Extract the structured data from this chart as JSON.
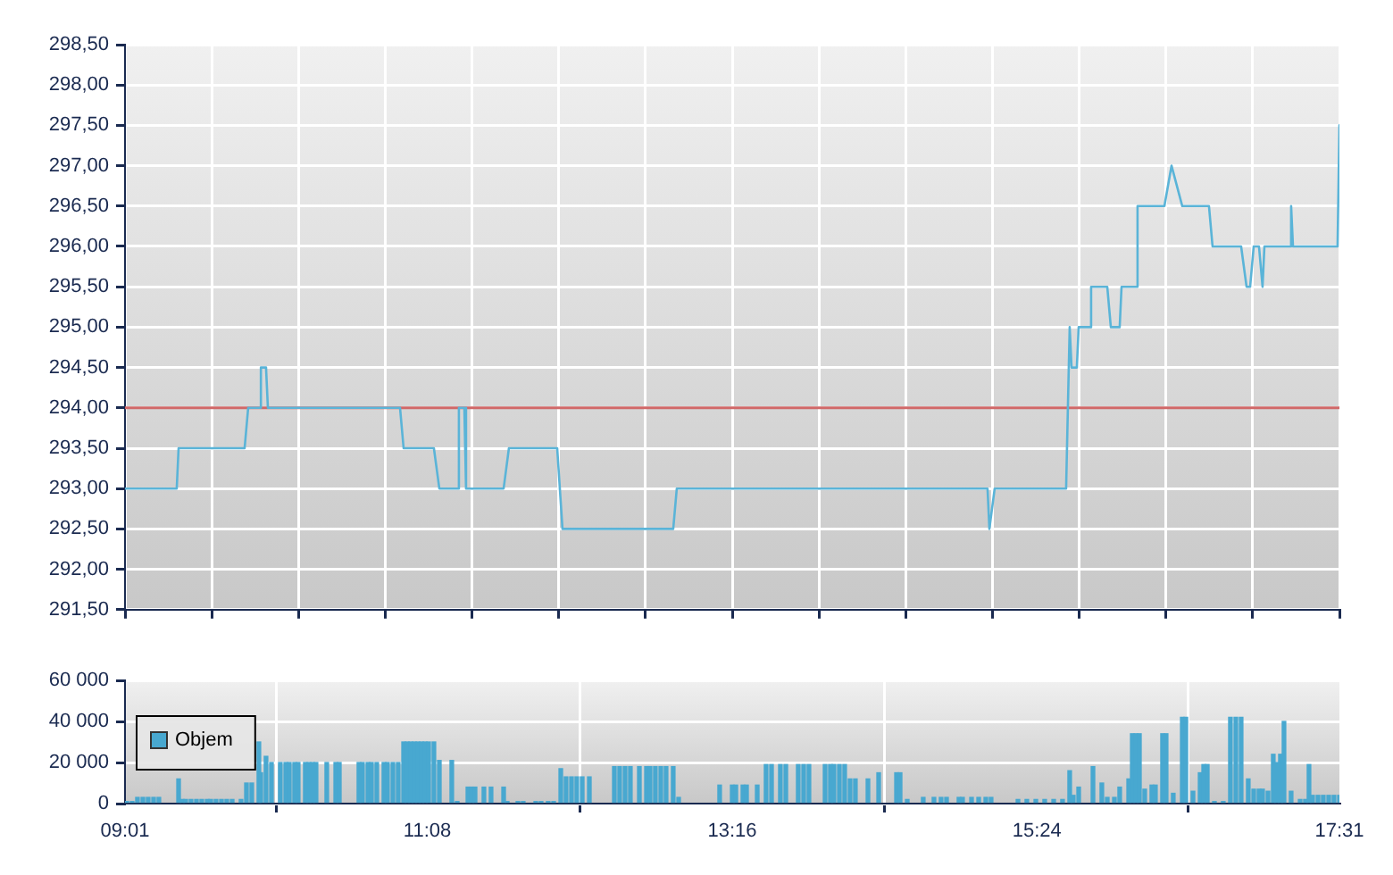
{
  "chart_data": [
    {
      "type": "line",
      "xlim": [
        9.017,
        17.517
      ],
      "xticks": [
        {
          "value": 9.017,
          "label": null
        },
        {
          "value": 9.624,
          "label": null
        },
        {
          "value": 10.231,
          "label": null
        },
        {
          "value": 10.838,
          "label": null
        },
        {
          "value": 11.445,
          "label": null
        },
        {
          "value": 12.052,
          "label": null
        },
        {
          "value": 12.66,
          "label": null
        },
        {
          "value": 13.267,
          "label": null
        },
        {
          "value": 13.874,
          "label": null
        },
        {
          "value": 14.481,
          "label": null
        },
        {
          "value": 15.088,
          "label": null
        },
        {
          "value": 15.695,
          "label": null
        },
        {
          "value": 16.302,
          "label": null
        },
        {
          "value": 16.91,
          "label": null
        },
        {
          "value": 17.517,
          "label": null
        }
      ],
      "ylim": [
        291.5,
        298.5
      ],
      "yticks": [
        {
          "value": 291.5,
          "label": "291,50"
        },
        {
          "value": 292,
          "label": "292,00"
        },
        {
          "value": 292.5,
          "label": "292,50"
        },
        {
          "value": 293,
          "label": "293,00"
        },
        {
          "value": 293.5,
          "label": "293,50"
        },
        {
          "value": 294,
          "label": "294,00"
        },
        {
          "value": 294.5,
          "label": "294,50"
        },
        {
          "value": 295,
          "label": "295,00"
        },
        {
          "value": 295.5,
          "label": "295,50"
        },
        {
          "value": 296,
          "label": "296,00"
        },
        {
          "value": 296.5,
          "label": "296,50"
        },
        {
          "value": 297,
          "label": "297,00"
        },
        {
          "value": 297.5,
          "label": "297,50"
        },
        {
          "value": 298,
          "label": "298,00"
        },
        {
          "value": 298.5,
          "label": "298,50"
        }
      ],
      "tick_labels": "y",
      "grid": true,
      "marker": "none",
      "ref_lines": [
        {
          "axis": "y",
          "value": 294,
          "color": "#d06868"
        }
      ],
      "series": [
        {
          "color": "#5ab4d8",
          "x": [
            9.017,
            9.379,
            9.392,
            9.854,
            9.879,
            9.967,
            9.968,
            10.004,
            10.017,
            10.942,
            10.967,
            11.179,
            11.217,
            11.342,
            11.354,
            11.392,
            11.404,
            11.667,
            11.704,
            12.042,
            12.079,
            12.854,
            12.879,
            15.054,
            15.067,
            15.104,
            15.604,
            15.629,
            15.642,
            15.679,
            15.692,
            15.767,
            15.779,
            15.892,
            15.917,
            15.979,
            15.992,
            16.092,
            16.104,
            16.292,
            16.342,
            16.417,
            16.604,
            16.629,
            16.829,
            16.867,
            16.892,
            16.917,
            16.954,
            16.979,
            16.992,
            17.167,
            17.179,
            17.192,
            17.504,
            17.517
          ],
          "values": [
            293,
            293,
            293.5,
            293.5,
            294,
            294,
            294.5,
            294.5,
            294,
            294,
            293.5,
            293.5,
            293,
            293,
            294,
            294,
            293,
            293,
            293.5,
            293.5,
            292.5,
            292.5,
            293,
            293,
            292.5,
            293,
            293,
            295,
            294.5,
            294.5,
            295,
            295,
            295.5,
            295.5,
            295,
            295,
            295.5,
            295.5,
            296.5,
            296.5,
            297,
            296.5,
            296.5,
            296,
            296,
            295.5,
            295.5,
            296,
            296,
            295.5,
            296,
            296,
            296.5,
            296,
            296,
            297.5
          ]
        }
      ]
    },
    {
      "type": "bar",
      "xlim": [
        9.017,
        17.517
      ],
      "xticks": [
        {
          "value": 9.017,
          "label": "09:01"
        },
        {
          "value": 11.133,
          "label": "11:08"
        },
        {
          "value": 13.267,
          "label": "13:16"
        },
        {
          "value": 15.4,
          "label": "15:24"
        },
        {
          "value": 17.517,
          "label": "17:31"
        }
      ],
      "ylim": [
        0,
        60000
      ],
      "yticks": [
        {
          "value": 0,
          "label": "0"
        },
        {
          "value": 20000,
          "label": "20 000"
        },
        {
          "value": 40000,
          "label": "40 000"
        },
        {
          "value": 60000,
          "label": "60 000"
        }
      ],
      "grid": true,
      "legend": "left",
      "series": [
        {
          "name": "Objem",
          "color": "#48a8d0",
          "x": [
            9.029,
            9.067,
            9.104,
            9.142,
            9.179,
            9.217,
            9.254,
            9.392,
            9.417,
            9.442,
            9.479,
            9.517,
            9.554,
            9.592,
            9.617,
            9.654,
            9.692,
            9.729,
            9.767,
            9.829,
            9.867,
            9.904,
            9.954,
            9.967,
            10.004,
            10.042,
            10.104,
            10.142,
            10.167,
            10.204,
            10.229,
            10.279,
            10.304,
            10.329,
            10.354,
            10.429,
            10.492,
            10.517,
            10.654,
            10.679,
            10.717,
            10.742,
            10.779,
            10.829,
            10.854,
            10.892,
            10.929,
            10.967,
            10.992,
            11.017,
            11.042,
            11.067,
            11.092,
            11.117,
            11.142,
            11.179,
            11.217,
            11.304,
            11.342,
            11.417,
            11.442,
            11.467,
            11.529,
            11.579,
            11.667,
            11.692,
            11.767,
            11.804,
            11.892,
            11.929,
            11.979,
            12.017,
            12.067,
            12.104,
            12.142,
            12.179,
            12.217,
            12.267,
            12.442,
            12.479,
            12.517,
            12.554,
            12.617,
            12.667,
            12.692,
            12.729,
            12.767,
            12.804,
            12.854,
            12.892,
            13.179,
            13.267,
            13.292,
            13.342,
            13.367,
            13.442,
            13.504,
            13.542,
            13.604,
            13.642,
            13.729,
            13.767,
            13.804,
            13.917,
            13.954,
            13.979,
            14.017,
            14.054,
            14.092,
            14.129,
            14.217,
            14.292,
            14.417,
            14.442,
            14.492,
            14.604,
            14.679,
            14.729,
            14.767,
            14.854,
            14.879,
            14.942,
            14.992,
            15.042,
            15.079,
            15.267,
            15.329,
            15.392,
            15.454,
            15.517,
            15.579,
            15.629,
            15.654,
            15.692,
            15.792,
            15.854,
            15.892,
            15.942,
            15.979,
            16.042,
            16.067,
            16.092,
            16.117,
            16.154,
            16.204,
            16.229,
            16.279,
            16.304,
            16.354,
            16.417,
            16.442,
            16.492,
            16.542,
            16.567,
            16.592,
            16.642,
            16.704,
            16.754,
            16.792,
            16.829,
            16.879,
            16.917,
            16.954,
            16.979,
            17.017,
            17.054,
            17.079,
            17.104,
            17.129,
            17.179,
            17.242,
            17.279,
            17.304,
            17.329,
            17.367,
            17.404,
            17.442,
            17.479,
            17.517
          ],
          "values": [
            1000,
            1000,
            3000,
            3000,
            3000,
            3000,
            3000,
            12000,
            2000,
            2000,
            2000,
            2000,
            2000,
            2000,
            2000,
            2000,
            2000,
            2000,
            2000,
            2000,
            10000,
            10000,
            30000,
            15000,
            23000,
            20000,
            20000,
            20000,
            20000,
            20000,
            20000,
            20000,
            20000,
            20000,
            20000,
            20000,
            20000,
            20000,
            20000,
            20000,
            20000,
            20000,
            20000,
            20000,
            20000,
            20000,
            20000,
            30000,
            30000,
            30000,
            30000,
            30000,
            30000,
            30000,
            30000,
            30000,
            21000,
            21000,
            1000,
            8000,
            8000,
            8000,
            8000,
            8000,
            8000,
            1000,
            1000,
            1000,
            1000,
            1000,
            1000,
            1000,
            17000,
            13000,
            13000,
            13000,
            13000,
            13000,
            18000,
            18000,
            18000,
            18000,
            18000,
            18000,
            18000,
            18000,
            18000,
            18000,
            18000,
            3000,
            9000,
            9000,
            9000,
            9000,
            9000,
            9000,
            19000,
            19000,
            19000,
            19000,
            19000,
            19000,
            19000,
            19000,
            19000,
            19000,
            19000,
            19000,
            12000,
            12000,
            12000,
            15000,
            15000,
            15000,
            2000,
            3000,
            3000,
            3000,
            3000,
            3000,
            3000,
            3000,
            3000,
            3000,
            3000,
            2000,
            2000,
            2000,
            2000,
            2000,
            2000,
            16000,
            4000,
            8000,
            18000,
            10000,
            3000,
            3000,
            8000,
            12000,
            34000,
            34000,
            34000,
            7000,
            9000,
            9000,
            34000,
            34000,
            5000,
            42000,
            42000,
            6000,
            15000,
            19000,
            19000,
            1000,
            1000,
            42000,
            42000,
            42000,
            12000,
            7000,
            7000,
            7000,
            6000,
            24000,
            20000,
            24000,
            40000,
            6000,
            2000,
            2000,
            19000,
            4000,
            4000,
            4000,
            4000,
            4000,
            4000
          ]
        }
      ]
    }
  ]
}
